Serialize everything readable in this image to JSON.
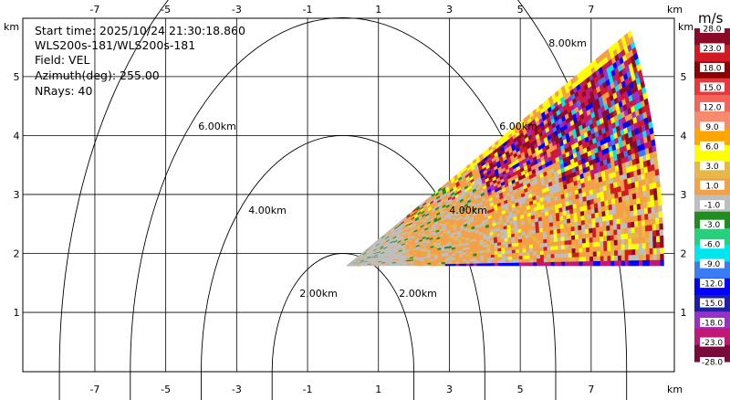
{
  "chart_data": {
    "type": "heatmap",
    "info": {
      "start_time": "Start time: 2025/10/24 21:30:18.860",
      "instrument": "WLS200s-181/WLS200s-181",
      "field": "Field: VEL",
      "azimuth": "Azimuth(deg): 255.00",
      "nrays": "NRays: 40"
    },
    "x_axis": {
      "unit": "km",
      "ticks": [
        -7,
        -5,
        -3,
        -1,
        1,
        3,
        5,
        7
      ],
      "range": [
        -9,
        9.5
      ]
    },
    "y_axis": {
      "unit": "km",
      "ticks": [
        1,
        2,
        3,
        4,
        5
      ],
      "range": [
        0,
        6
      ]
    },
    "range_rings": [
      {
        "radius": 2,
        "label": "2.00km"
      },
      {
        "radius": 4,
        "label": "4.00km"
      },
      {
        "radius": 6,
        "label": "6.00km"
      },
      {
        "radius": 8,
        "label": "8.00km"
      }
    ],
    "scan": {
      "origin_x": 0.1,
      "origin_y": 1.79,
      "angle_start_deg": 0,
      "angle_end_deg": 26.5,
      "range_start_km": 0,
      "range_end_km": 8.95,
      "description": "radial velocity RHI sector"
    },
    "colorbar": {
      "unit": "m/s",
      "labels": [
        "28.0",
        "23.0",
        "18.0",
        "15.0",
        "12.0",
        "9.0",
        "6.0",
        "3.0",
        "1.0",
        "-1.0",
        "-3.0",
        "-6.0",
        "-9.0",
        "-12.0",
        "-15.0",
        "-18.0",
        "-23.0",
        "-28.0"
      ],
      "colors": [
        "#8b0a2a",
        "#d11a24",
        "#8b0000",
        "#e8383c",
        "#f4625a",
        "#f88a6d",
        "#ffa500",
        "#ffff00",
        "#e6b84a",
        "#f4a046",
        "#bebebe",
        "#228b22",
        "#26d07c",
        "#00e5ee",
        "#3b7cf5",
        "#0000ff",
        "#1e1ea8",
        "#9b30c8",
        "#c01878",
        "#7a0a3a"
      ]
    }
  }
}
